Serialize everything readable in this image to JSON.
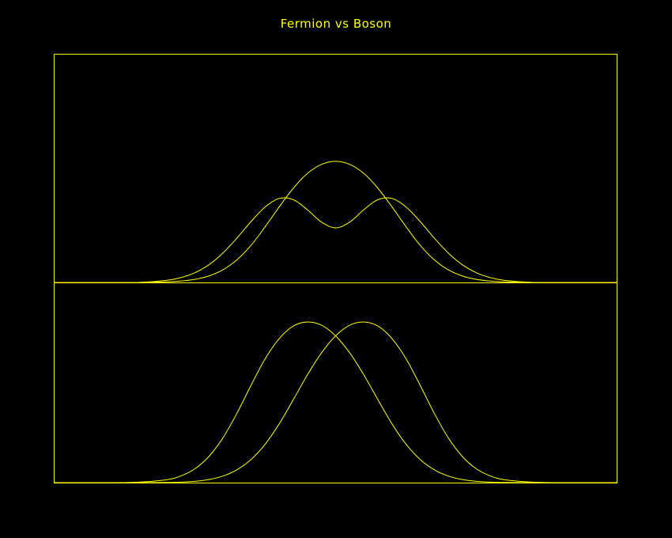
{
  "chart_data": {
    "type": "line",
    "title": "Fermion vs Boson",
    "xlabel": "",
    "ylabel": "",
    "xlim": [
      -5,
      5
    ],
    "grid": false,
    "legend": "none",
    "color": "#ffff00",
    "background": "#000000",
    "x": [
      -5.0,
      -4.5,
      -4.0,
      -3.5,
      -3.0,
      -2.75,
      -2.5,
      -2.25,
      -2.0,
      -1.75,
      -1.5,
      -1.25,
      -1.0,
      -0.75,
      -0.5,
      -0.25,
      0.0,
      0.25,
      0.5,
      0.75,
      1.0,
      1.25,
      1.5,
      1.75,
      2.0,
      2.25,
      2.5,
      2.75,
      3.0,
      3.5,
      4.0,
      4.5,
      5.0
    ],
    "panels": [
      {
        "ylim": [
          0,
          1.0
        ],
        "series": [
          {
            "values": [
              0.0,
              0.0,
              0.0,
              0.0,
              0.004,
              0.01,
              0.022,
              0.046,
              0.09,
              0.162,
              0.265,
              0.398,
              0.54,
              0.673,
              0.779,
              0.843,
              0.865,
              0.843,
              0.779,
              0.673,
              0.54,
              0.398,
              0.265,
              0.162,
              0.09,
              0.046,
              0.022,
              0.01,
              0.004,
              0.0,
              0.0,
              0.0,
              0.0
            ]
          },
          {
            "values": [
              0.0,
              0.0,
              0.0,
              0.0,
              0.015,
              0.034,
              0.069,
              0.126,
              0.21,
              0.317,
              0.435,
              0.539,
              0.6,
              0.591,
              0.519,
              0.431,
              0.39,
              0.431,
              0.519,
              0.591,
              0.6,
              0.539,
              0.435,
              0.317,
              0.21,
              0.126,
              0.069,
              0.034,
              0.015,
              0.0,
              0.0,
              0.0,
              0.0
            ]
          }
        ]
      },
      {
        "ylim": [
          0,
          1.0
        ],
        "series": [
          {
            "values": [
              0.0,
              0.0,
              0.0,
              0.003,
              0.018,
              0.041,
              0.085,
              0.162,
              0.278,
              0.432,
              0.606,
              0.771,
              0.897,
              0.975,
              1.0,
              0.98,
              0.914,
              0.808,
              0.671,
              0.517,
              0.366,
              0.239,
              0.144,
              0.08,
              0.041,
              0.019,
              0.008,
              0.003,
              0.001,
              0.0,
              0.0,
              0.0,
              0.0
            ]
          },
          {
            "values": [
              0.0,
              0.0,
              0.0,
              0.0,
              0.001,
              0.003,
              0.008,
              0.019,
              0.041,
              0.08,
              0.144,
              0.239,
              0.366,
              0.517,
              0.671,
              0.808,
              0.914,
              0.98,
              1.0,
              0.975,
              0.897,
              0.771,
              0.606,
              0.432,
              0.278,
              0.162,
              0.085,
              0.041,
              0.018,
              0.003,
              0.0,
              0.0,
              0.0
            ]
          }
        ]
      }
    ]
  }
}
